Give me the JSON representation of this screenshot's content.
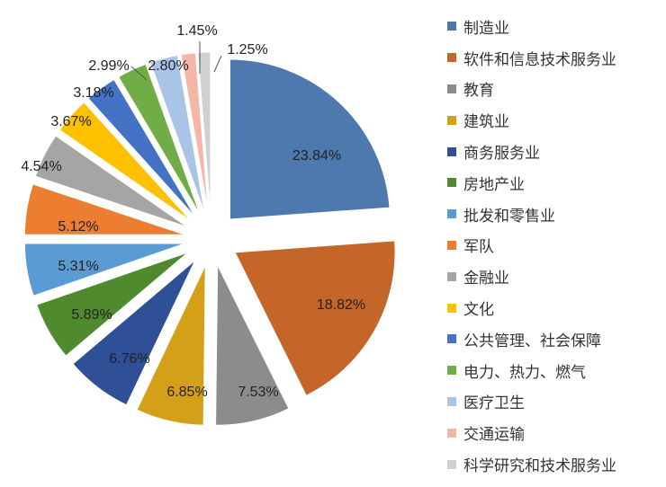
{
  "chart_data": {
    "type": "pie",
    "exploded": true,
    "legend_position": "right",
    "categories": [
      "制造业",
      "软件和信息技术服务业",
      "教育",
      "建筑业",
      "商务服务业",
      "房地产业",
      "批发和零售业",
      "军队",
      "金融业",
      "文化",
      "公共管理、社会保障",
      "电力、热力、燃气",
      "医疗卫生",
      "交通运输",
      "科学研究和技术服务业"
    ],
    "values": [
      23.84,
      18.82,
      7.53,
      6.85,
      6.76,
      5.89,
      5.31,
      5.12,
      4.54,
      3.67,
      3.18,
      2.99,
      2.8,
      1.45,
      1.25
    ],
    "data_labels": [
      "23.84%",
      "18.82%",
      "7.53%",
      "6.85%",
      "6.76%",
      "5.89%",
      "5.31%",
      "5.12%",
      "4.54%",
      "3.67%",
      "3.18%",
      "2.99%",
      "2.80%",
      "1.45%",
      "1.25%"
    ],
    "colors": [
      "#4E79AE",
      "#C4652A",
      "#8C8C8C",
      "#D4A017",
      "#2F4F96",
      "#4F8A2E",
      "#5B9BD5",
      "#ED7D31",
      "#A5A5A5",
      "#FFC000",
      "#4472C4",
      "#70AD47",
      "#A9C4E6",
      "#F4B6A6",
      "#D0D0D0"
    ]
  }
}
